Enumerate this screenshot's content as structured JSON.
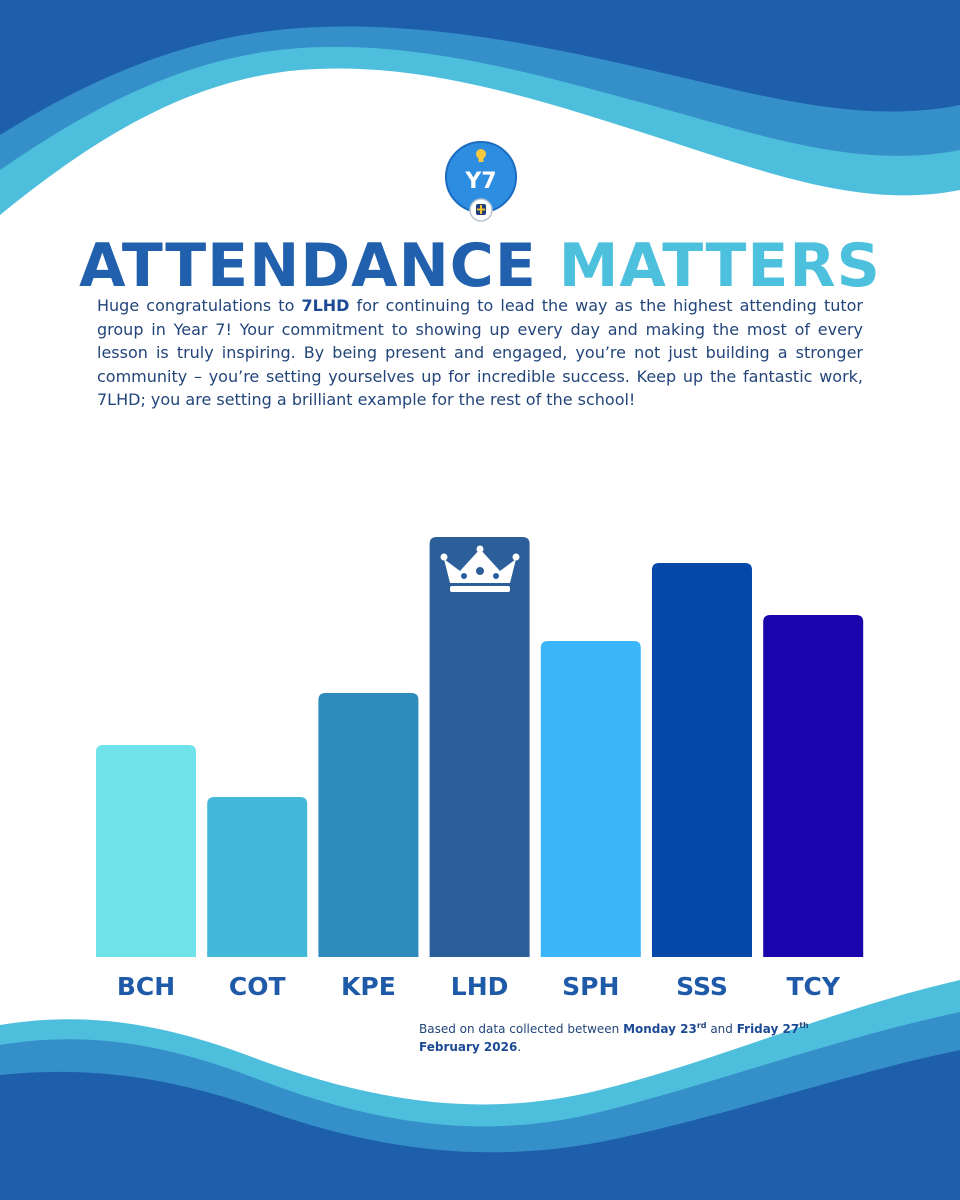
{
  "logo": {
    "text": "Y7"
  },
  "headline": {
    "word1": "ATTENDANCE",
    "word2": "MATTERS"
  },
  "intro": {
    "part1": "Huge congratulations to ",
    "highlight": "7LHD",
    "part2": " for continuing to lead the way as the highest attending tutor group in Year 7! Your commitment to showing up every day and making the most of every lesson is truly inspiring. By being present and engaged, you’re not just building a stronger community – you’re setting yourselves up for incredible success. Keep up the fantastic work, 7LHD; you are setting a brilliant example for the rest of the school!"
  },
  "chart_data": {
    "type": "bar",
    "categories": [
      "BCH",
      "COT",
      "KPE",
      "LHD",
      "SPH",
      "SSS",
      "TCY"
    ],
    "values": [
      2,
      1,
      3,
      6,
      4,
      5.5,
      4.5
    ],
    "colors": [
      "#6fe3e9",
      "#43b8d8",
      "#2e8cbd",
      "#2c5f9a",
      "#3bb6fa",
      "#0449a9",
      "#1a05ad"
    ],
    "value_note": "bars carry no printed values; relative heights only",
    "winner": "LHD",
    "winner_icon": "crown-icon",
    "label_color": "#1f5aa8"
  },
  "footnote": {
    "t1": "Based on data collected between ",
    "d1": "Monday 23",
    "s1": "rd",
    "t2": " and ",
    "d2": "Friday 27",
    "s2": "th",
    "d3": "February 2026",
    "t3": "."
  },
  "colors": {
    "dark_blue": "#1e5fac",
    "mid_blue": "#3590c9",
    "light_blue": "#4dbedc",
    "text": "#23457a"
  }
}
